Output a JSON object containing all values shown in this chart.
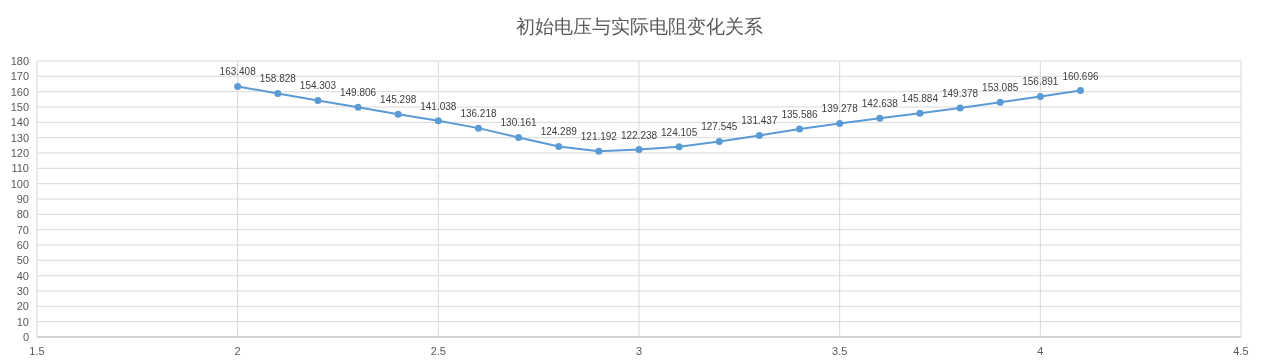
{
  "chart_data": {
    "type": "line",
    "title": "初始电压与实际电阻变化关系",
    "x": [
      2,
      2.1,
      2.2,
      2.3,
      2.4,
      2.5,
      2.6,
      2.7,
      2.8,
      2.9,
      3,
      3.1,
      3.2,
      3.3,
      3.4,
      3.5,
      3.6,
      3.7,
      3.8,
      3.9,
      4,
      4.1
    ],
    "series": [
      {
        "color": "#5b9bd5",
        "values": [
          163.408,
          158.828,
          154.303,
          149.806,
          145.298,
          141.038,
          136.218,
          130.161,
          124.289,
          121.192,
          122.238,
          124.105,
          127.545,
          131.437,
          135.586,
          139.278,
          142.638,
          145.884,
          149.378,
          153.085,
          156.891,
          160.696
        ]
      }
    ],
    "xlim": [
      1.5,
      4.5
    ],
    "xticks": [
      1.5,
      2,
      2.5,
      3,
      3.5,
      4,
      4.5
    ],
    "ylim": [
      0,
      180
    ],
    "yticks": [
      0,
      10,
      20,
      30,
      40,
      50,
      60,
      70,
      80,
      90,
      100,
      110,
      120,
      130,
      140,
      150,
      160,
      170,
      180
    ],
    "grid": true,
    "marker": "circle",
    "line_style": "solid",
    "data_labels": true
  }
}
